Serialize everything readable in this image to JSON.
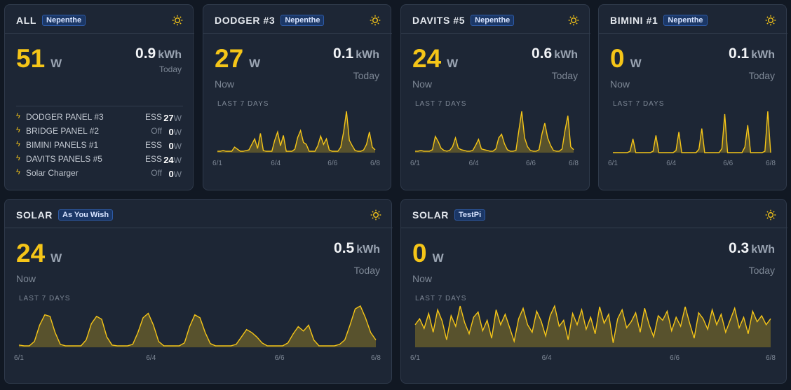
{
  "cards": [
    {
      "title": "ALL",
      "tag": "Nepenthe",
      "power": 51,
      "power_unit": "W",
      "energy": 0.9,
      "energy_unit": "kWh",
      "energy_label": "Today",
      "sources": [
        {
          "name": "DODGER PANEL #3",
          "kind": "ESS",
          "value": 27,
          "unit": "W"
        },
        {
          "name": "BRIDGE PANEL #2",
          "kind": "Off",
          "value": 0,
          "unit": "W"
        },
        {
          "name": "BIMINI PANELS #1",
          "kind": "ESS",
          "value": 0,
          "unit": "W"
        },
        {
          "name": "DAVITS PANELS #5",
          "kind": "ESS",
          "value": 24,
          "unit": "W"
        },
        {
          "name": "Solar Charger",
          "kind": "Off",
          "value": 0,
          "unit": "W"
        }
      ]
    },
    {
      "title": "DODGER #3",
      "tag": "Nepenthe",
      "power": 27,
      "power_unit": "W",
      "power_label": "Now",
      "energy": 0.1,
      "energy_unit": "kWh",
      "energy_label": "Today",
      "chart": {
        "type": "area",
        "label": "LAST 7 DAYS",
        "color": "#f5c518",
        "xticks": [
          "6/1",
          "6/4",
          "6/6",
          "6/8"
        ],
        "values": [
          2,
          2,
          3,
          2,
          2,
          2,
          8,
          5,
          2,
          2,
          3,
          4,
          12,
          20,
          6,
          28,
          3,
          2,
          2,
          2,
          18,
          30,
          10,
          25,
          2,
          2,
          2,
          5,
          22,
          32,
          15,
          12,
          2,
          2,
          2,
          10,
          24,
          12,
          20,
          4,
          2,
          2,
          2,
          8,
          30,
          60,
          18,
          10,
          3,
          2,
          2,
          4,
          12,
          30,
          8,
          4
        ]
      }
    },
    {
      "title": "DAVITS #5",
      "tag": "Nepenthe",
      "power": 24,
      "power_unit": "W",
      "power_label": "Now",
      "energy": 0.6,
      "energy_unit": "kWh",
      "energy_label": "Today",
      "chart": {
        "type": "area",
        "label": "LAST 7 DAYS",
        "color": "#f5c518",
        "xticks": [
          "6/1",
          "6/4",
          "6/6",
          "6/8"
        ],
        "values": [
          2,
          2,
          3,
          2,
          2,
          2,
          4,
          22,
          15,
          6,
          3,
          2,
          3,
          8,
          20,
          6,
          4,
          3,
          2,
          2,
          3,
          10,
          18,
          5,
          4,
          3,
          2,
          2,
          5,
          20,
          25,
          12,
          4,
          2,
          2,
          3,
          30,
          56,
          20,
          8,
          3,
          2,
          2,
          4,
          25,
          40,
          20,
          10,
          3,
          2,
          2,
          5,
          30,
          50,
          8,
          4
        ]
      }
    },
    {
      "title": "BIMINI #1",
      "tag": "Nepenthe",
      "power": 0,
      "power_unit": "W",
      "power_label": "Now",
      "energy": 0.1,
      "energy_unit": "kWh",
      "energy_label": "Today",
      "chart": {
        "type": "area",
        "label": "LAST 7 DAYS",
        "color": "#f5c518",
        "xticks": [
          "6/1",
          "6/4",
          "6/6",
          "6/8"
        ],
        "values": [
          0,
          0,
          0,
          0,
          0,
          0,
          2,
          20,
          0,
          0,
          0,
          0,
          0,
          0,
          2,
          25,
          0,
          0,
          0,
          0,
          0,
          0,
          3,
          30,
          0,
          0,
          0,
          0,
          0,
          0,
          5,
          35,
          0,
          0,
          0,
          0,
          0,
          0,
          6,
          56,
          0,
          0,
          0,
          0,
          0,
          0,
          8,
          40,
          0,
          0,
          0,
          0,
          0,
          2,
          60,
          0
        ]
      }
    },
    {
      "title": "SOLAR",
      "tag": "As You Wish",
      "power": 24,
      "power_unit": "W",
      "power_label": "Now",
      "energy": 0.5,
      "energy_unit": "kWh",
      "energy_label": "Today",
      "chart": {
        "type": "area",
        "label": "LAST 7 DAYS",
        "color": "#f5c518",
        "xticks": [
          "6/1",
          "6/4",
          "6/6",
          "6/8"
        ],
        "values": [
          3,
          2,
          2,
          8,
          30,
          44,
          42,
          20,
          4,
          2,
          2,
          2,
          2,
          10,
          32,
          42,
          38,
          14,
          3,
          2,
          2,
          2,
          4,
          20,
          40,
          46,
          30,
          8,
          2,
          2,
          2,
          2,
          6,
          28,
          44,
          40,
          20,
          5,
          2,
          2,
          2,
          2,
          4,
          14,
          24,
          20,
          14,
          6,
          2,
          2,
          2,
          2,
          6,
          18,
          28,
          22,
          30,
          10,
          2,
          2,
          2,
          2,
          4,
          10,
          30,
          52,
          56,
          40,
          20,
          10
        ]
      }
    },
    {
      "title": "SOLAR",
      "tag": "TestPi",
      "power": 0,
      "power_unit": "W",
      "power_label": "Now",
      "energy": 0.3,
      "energy_unit": "kWh",
      "energy_label": "Today",
      "chart": {
        "type": "area",
        "label": "LAST 7 DAYS",
        "color": "#f5c518",
        "xticks": [
          "6/1",
          "6/4",
          "6/6",
          "6/8"
        ],
        "values": [
          30,
          38,
          25,
          45,
          20,
          50,
          35,
          10,
          42,
          28,
          55,
          33,
          18,
          40,
          47,
          22,
          36,
          12,
          50,
          30,
          44,
          26,
          8,
          38,
          52,
          30,
          20,
          48,
          35,
          15,
          42,
          55,
          28,
          36,
          10,
          45,
          30,
          50,
          24,
          40,
          18,
          54,
          32,
          44,
          6,
          38,
          50,
          26,
          34,
          46,
          20,
          52,
          30,
          14,
          42,
          36,
          48,
          22,
          40,
          28,
          54,
          32,
          12,
          46,
          38,
          24,
          50,
          30,
          44,
          20,
          36,
          52,
          26,
          40,
          18,
          48,
          34,
          42,
          30,
          38
        ]
      }
    }
  ]
}
